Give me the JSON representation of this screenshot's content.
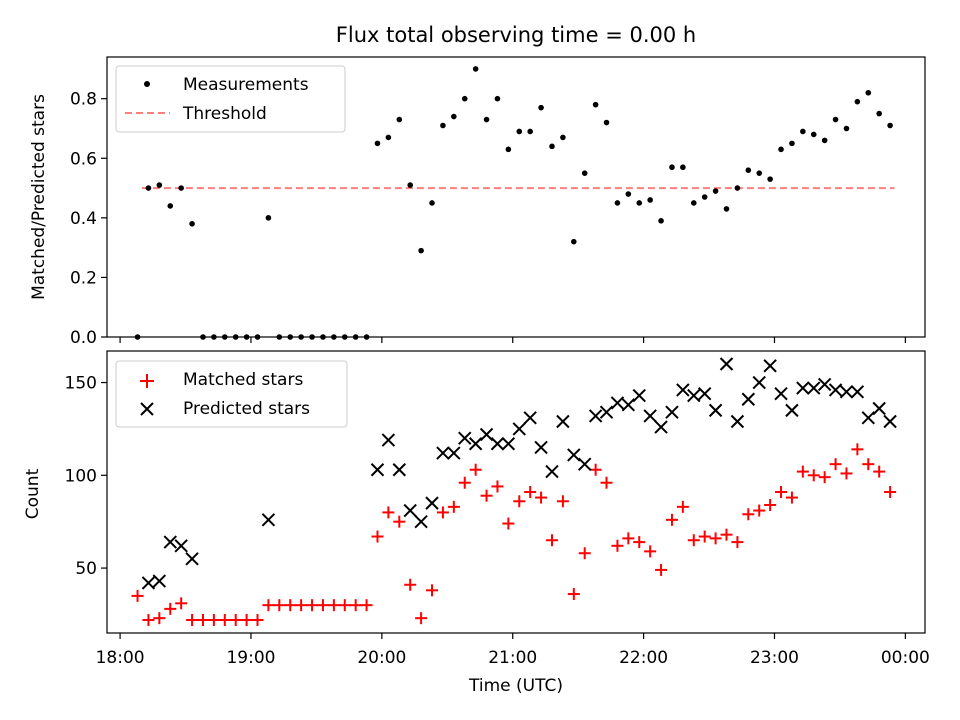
{
  "figure_title": "Flux total observing time = 0.00 h",
  "colors": {
    "measurement": "#000000",
    "threshold": "#ff7f7f",
    "matched": "#ff0000",
    "predicted": "#000000"
  },
  "chart_data": [
    {
      "type": "scatter",
      "title": "Flux total observing time = 0.00 h",
      "xlabel": "",
      "ylabel": "Matched/Predicted stars",
      "xlim": [
        "17:54",
        "00:09"
      ],
      "ylim": [
        0,
        0.94
      ],
      "yticks": [
        "0.0",
        "0.2",
        "0.4",
        "0.6",
        "0.8"
      ],
      "xticks": [
        "18:00",
        "19:00",
        "20:00",
        "21:00",
        "22:00",
        "23:00",
        "00:00"
      ],
      "legend_position": "top-left",
      "legend": [
        "Measurements",
        "Threshold"
      ],
      "threshold": {
        "name": "Threshold",
        "y": 0.5,
        "x_start": "18:10",
        "x_end": "23:55"
      },
      "series": [
        {
          "name": "Measurements",
          "x": [
            "18:08",
            "18:13",
            "18:18",
            "18:23",
            "18:28",
            "18:33",
            "18:38",
            "18:43",
            "18:48",
            "18:53",
            "18:58",
            "19:03",
            "19:08",
            "19:13",
            "19:18",
            "19:23",
            "19:28",
            "19:33",
            "19:38",
            "19:43",
            "19:48",
            "19:53",
            "19:58",
            "20:03",
            "20:08",
            "20:13",
            "20:18",
            "20:23",
            "20:28",
            "20:33",
            "20:38",
            "20:43",
            "20:48",
            "20:53",
            "20:58",
            "21:03",
            "21:08",
            "21:13",
            "21:18",
            "21:23",
            "21:28",
            "21:33",
            "21:38",
            "21:43",
            "21:48",
            "21:53",
            "21:58",
            "22:03",
            "22:08",
            "22:13",
            "22:18",
            "22:23",
            "22:28",
            "22:33",
            "22:38",
            "22:43",
            "22:48",
            "22:53",
            "22:58",
            "23:03",
            "23:08",
            "23:13",
            "23:18",
            "23:23",
            "23:28",
            "23:33",
            "23:38",
            "23:43",
            "23:48",
            "23:53"
          ],
          "y": [
            0.0,
            0.5,
            0.51,
            0.44,
            0.5,
            0.38,
            0.0,
            0.0,
            0.0,
            0.0,
            0.0,
            0.0,
            0.4,
            0.0,
            0.0,
            0.0,
            0.0,
            0.0,
            0.0,
            0.0,
            0.0,
            0.0,
            0.65,
            0.67,
            0.73,
            0.51,
            0.29,
            0.45,
            0.71,
            0.74,
            0.8,
            0.9,
            0.73,
            0.8,
            0.63,
            0.69,
            0.69,
            0.77,
            0.64,
            0.67,
            0.32,
            0.55,
            0.78,
            0.72,
            0.45,
            0.48,
            0.45,
            0.46,
            0.39,
            0.57,
            0.57,
            0.45,
            0.47,
            0.49,
            0.43,
            0.5,
            0.56,
            0.55,
            0.53,
            0.63,
            0.65,
            0.69,
            0.68,
            0.66,
            0.73,
            0.7,
            0.79,
            0.82,
            0.75,
            0.71
          ]
        }
      ]
    },
    {
      "type": "scatter",
      "title": "",
      "xlabel": "Time (UTC)",
      "ylabel": "Count",
      "xlim": [
        "17:54",
        "00:09"
      ],
      "ylim": [
        15,
        167
      ],
      "yticks": [
        "50",
        "100",
        "150"
      ],
      "xticks": [
        "18:00",
        "19:00",
        "20:00",
        "21:00",
        "22:00",
        "23:00",
        "00:00"
      ],
      "legend_position": "top-left",
      "series": [
        {
          "name": "Matched stars",
          "marker": "+",
          "x": [
            "18:08",
            "18:13",
            "18:18",
            "18:23",
            "18:28",
            "18:33",
            "18:38",
            "18:43",
            "18:48",
            "18:53",
            "18:58",
            "19:03",
            "19:08",
            "19:13",
            "19:18",
            "19:23",
            "19:28",
            "19:33",
            "19:38",
            "19:43",
            "19:48",
            "19:53",
            "19:58",
            "20:03",
            "20:08",
            "20:13",
            "20:18",
            "20:23",
            "20:28",
            "20:33",
            "20:38",
            "20:43",
            "20:48",
            "20:53",
            "20:58",
            "21:03",
            "21:08",
            "21:13",
            "21:18",
            "21:23",
            "21:28",
            "21:33",
            "21:38",
            "21:43",
            "21:48",
            "21:53",
            "21:58",
            "22:03",
            "22:08",
            "22:13",
            "22:18",
            "22:23",
            "22:28",
            "22:33",
            "22:38",
            "22:43",
            "22:48",
            "22:53",
            "22:58",
            "23:03",
            "23:08",
            "23:13",
            "23:18",
            "23:23",
            "23:28",
            "23:33",
            "23:38",
            "23:43",
            "23:48",
            "23:53"
          ],
          "y": [
            35,
            22,
            23,
            28,
            31,
            22,
            22,
            22,
            22,
            22,
            22,
            22,
            30,
            30,
            30,
            30,
            30,
            30,
            30,
            30,
            30,
            30,
            67,
            80,
            75,
            41,
            23,
            38,
            80,
            83,
            96,
            103,
            89,
            94,
            74,
            86,
            91,
            88,
            65,
            86,
            36,
            58,
            103,
            96,
            62,
            66,
            64,
            59,
            49,
            76,
            83,
            65,
            67,
            66,
            68,
            64,
            79,
            81,
            84,
            91,
            88,
            102,
            100,
            99,
            106,
            101,
            114,
            106,
            102,
            91
          ]
        },
        {
          "name": "Predicted stars",
          "marker": "x",
          "x": [
            "18:13",
            "18:18",
            "18:23",
            "18:28",
            "18:33",
            "19:08",
            "19:58",
            "20:03",
            "20:08",
            "20:13",
            "20:18",
            "20:23",
            "20:28",
            "20:33",
            "20:38",
            "20:43",
            "20:48",
            "20:53",
            "20:58",
            "21:03",
            "21:08",
            "21:13",
            "21:18",
            "21:23",
            "21:28",
            "21:33",
            "21:38",
            "21:43",
            "21:48",
            "21:53",
            "21:58",
            "22:03",
            "22:08",
            "22:13",
            "22:18",
            "22:23",
            "22:28",
            "22:33",
            "22:38",
            "22:43",
            "22:48",
            "22:53",
            "22:58",
            "23:03",
            "23:08",
            "23:13",
            "23:18",
            "23:23",
            "23:28",
            "23:33",
            "23:38",
            "23:43",
            "23:48",
            "23:53"
          ],
          "y": [
            42,
            43,
            64,
            62,
            55,
            76,
            103,
            119,
            103,
            81,
            75,
            85,
            112,
            112,
            120,
            117,
            122,
            117,
            117,
            125,
            131,
            115,
            102,
            129,
            111,
            106,
            132,
            134,
            139,
            138,
            143,
            132,
            126,
            134,
            146,
            143,
            144,
            135,
            160,
            129,
            141,
            150,
            159,
            144,
            135,
            147,
            147,
            149,
            146,
            145,
            145,
            131,
            136,
            129
          ]
        }
      ]
    }
  ]
}
